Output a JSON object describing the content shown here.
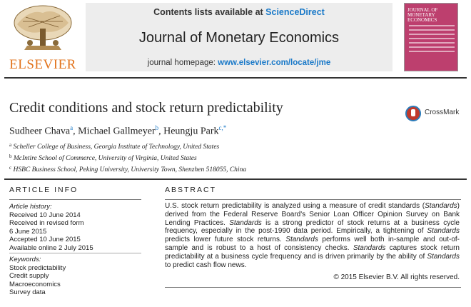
{
  "header": {
    "contents_prefix": "Contents lists available at ",
    "contents_link": "ScienceDirect",
    "journal_title": "Journal of Monetary Economics",
    "homepage_prefix": "journal homepage: ",
    "homepage_url": "www.elsevier.com/locate/jme",
    "publisher_logo": "ELSEVIER",
    "cover_title": "Journal of MONETARY ECONOMICS"
  },
  "article": {
    "title": "Credit conditions and stock return predictability",
    "authors": [
      {
        "name": "Sudheer Chava",
        "sup": "a"
      },
      {
        "name": "Michael Gallmeyer",
        "sup": "b"
      },
      {
        "name": "Heungju Park",
        "sup": "c,*"
      }
    ],
    "affiliations": [
      {
        "mark": "a",
        "text": "Scheller College of Business, Georgia Institute of Technology, United States"
      },
      {
        "mark": "b",
        "text": "McIntire School of Commerce, University of Virginia, United States"
      },
      {
        "mark": "c",
        "text": "HSBC Business School, Peking University, University Town, Shenzhen 518055, China"
      }
    ],
    "crossmark_label": "CrossMark"
  },
  "article_info": {
    "heading": "ARTICLE INFO",
    "history_label": "Article history:",
    "history": [
      "Received 10 June 2014",
      "Received in revised form",
      "6 June 2015",
      "Accepted 10 June 2015",
      "Available online 2 July 2015"
    ],
    "keywords_label": "Keywords:",
    "keywords": [
      "Stock predictability",
      "Credit supply",
      "Macroeconomics",
      "Survey data"
    ]
  },
  "abstract": {
    "heading": "ABSTRACT",
    "s1a": "U.S. stock return predictability is analyzed using a measure of credit standards (",
    "s1b": "Standards",
    "s1c": ") derived from the Federal Reserve Board's Senior Loan Officer Opinion Survey on Bank Lending Practices. ",
    "s2a": "Standards",
    "s2b": " is a strong predictor of stock returns at a business cycle frequency, especially in the post-1990 data period. Empirically, a tightening of ",
    "s2c": "Standards",
    "s2d": " predicts lower future stock returns. ",
    "s3a": "Standards",
    "s3b": " performs well both in-sample and out-of-sample and is robust to a host of consistency checks. ",
    "s4a": "Standards",
    "s4b": " captures stock return predictability at a business cycle frequency and is driven primarily by the ability of ",
    "s4c": "Standards",
    "s4d": " to predict cash flow news.",
    "copyright": "© 2015 Elsevier B.V. All rights reserved."
  },
  "colors": {
    "link_blue": "#1a79c8",
    "elsevier_orange": "#e2731c",
    "cover_pink": "#bd3f6e",
    "header_gray": "#ededed"
  }
}
